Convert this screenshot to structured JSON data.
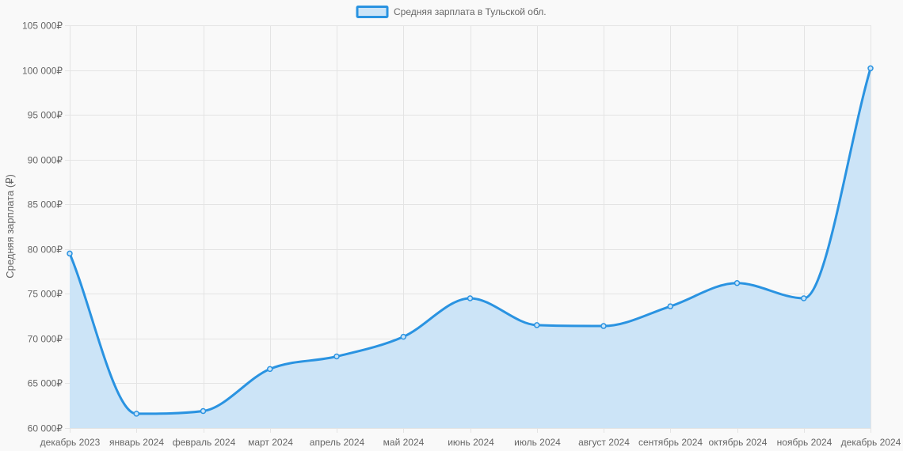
{
  "chart_data": {
    "type": "area",
    "categories": [
      "декабрь 2023",
      "январь 2024",
      "февраль 2024",
      "март 2024",
      "апрель 2024",
      "май 2024",
      "июнь 2024",
      "июль 2024",
      "август 2024",
      "сентябрь 2024",
      "октябрь 2024",
      "ноябрь 2024",
      "декабрь 2024"
    ],
    "series": [
      {
        "name": "Средняя зарплата в Тульской обл.",
        "values": [
          79500,
          61600,
          61900,
          66600,
          68000,
          70200,
          74500,
          71500,
          71400,
          73600,
          76200,
          74500,
          100200
        ],
        "line_color": "#2a93e1",
        "fill_color": "#cce4f7"
      }
    ],
    "ylabel": "Средняя зарплата (₽)",
    "xlabel": "",
    "ylim": [
      60000,
      105000
    ],
    "y_step": 5000,
    "y_tick_labels": [
      "60 000₽",
      "65 000₽",
      "70 000₽",
      "75 000₽",
      "80 000₽",
      "85 000₽",
      "90 000₽",
      "95 000₽",
      "100 000₽",
      "105 000₽"
    ],
    "grid": true,
    "legend_position": "top-center",
    "background_color": "#f9f9f9",
    "grid_color": "#e4e4e4",
    "text_color": "#666666"
  }
}
